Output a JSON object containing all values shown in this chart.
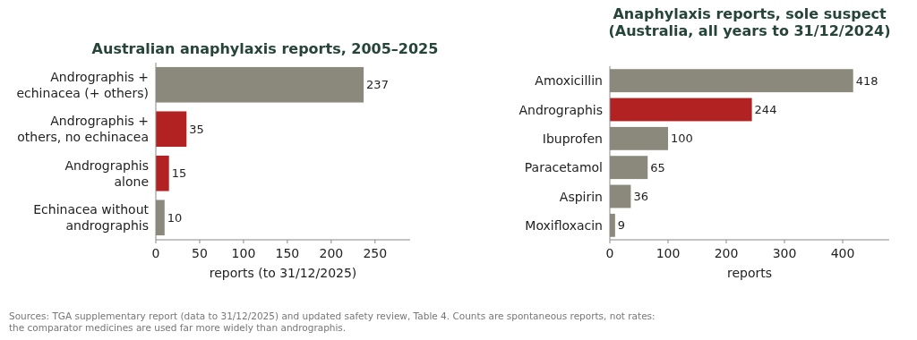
{
  "chart_data": [
    {
      "type": "bar",
      "orientation": "horizontal",
      "title": "Australian anaphylaxis reports, 2005–2025",
      "xlabel": "reports (to 31/12/2025)",
      "categories": [
        "Andrographis +\nechinacea (+ others)",
        "Andrographis +\nothers, no echinacea",
        "Andrographis\nalone",
        "Echinacea without\nandrographis"
      ],
      "values": [
        237,
        35,
        15,
        10
      ],
      "colors": [
        "#8a897c",
        "#b22222",
        "#b22222",
        "#8a897c"
      ],
      "data_labels": true,
      "xlim": [
        0,
        290
      ],
      "xticks": [
        0,
        50,
        100,
        150,
        200,
        250
      ],
      "annotations": [
        "Sources: TGA supplementary report (data to 31/12/2025) and updated safety review, Table 4. Counts are spontaneous reports, not rates:\nthe comparator medicines are used far more widely than andrographis."
      ]
    },
    {
      "type": "bar",
      "orientation": "horizontal",
      "title": "Anaphylaxis reports, sole suspect\n(Australia, all years to 31/12/2024)",
      "xlabel": "reports",
      "categories": [
        "Amoxicillin",
        "Andrographis",
        "Ibuprofen",
        "Paracetamol",
        "Aspirin",
        "Moxifloxacin"
      ],
      "values": [
        418,
        244,
        100,
        65,
        36,
        9
      ],
      "colors": [
        "#8a897c",
        "#b22222",
        "#8a897c",
        "#8a897c",
        "#8a897c",
        "#8a897c"
      ],
      "data_labels": true,
      "xlim": [
        0,
        480
      ],
      "xticks": [
        0,
        100,
        200,
        300,
        400
      ]
    }
  ]
}
